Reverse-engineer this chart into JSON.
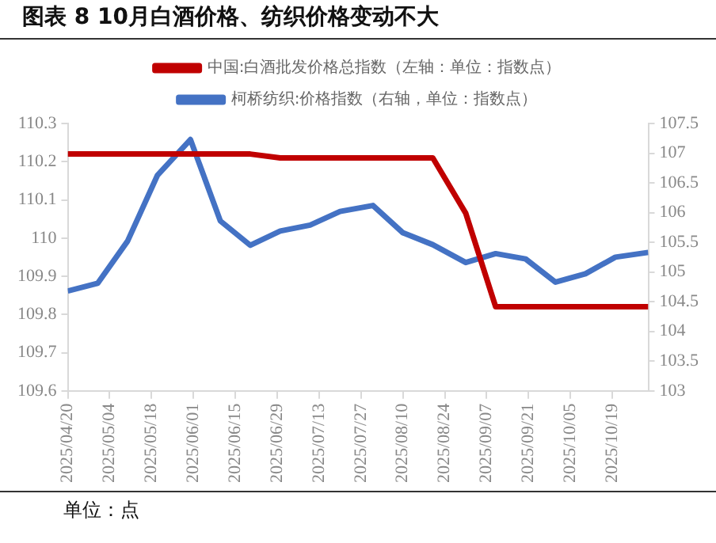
{
  "chart_data": {
    "type": "line",
    "title": "图表 8 10月白酒价格、纺织价格变动不大",
    "x": [
      "2025-04-20",
      "2025-04-30",
      "2025-05-10",
      "2025-05-20",
      "2025-05-31",
      "2025-06-10",
      "2025-06-20",
      "2025-06-30",
      "2025-07-10",
      "2025-07-20",
      "2025-07-31",
      "2025-08-10",
      "2025-08-20",
      "2025-08-31",
      "2025-09-10",
      "2025-09-20",
      "2025-09-30",
      "2025-10-10",
      "2025-10-20",
      "2025-10-31"
    ],
    "series": [
      {
        "name": "中国:白酒批发价格总指数（左轴：单位：指数点）",
        "color": "#c00000",
        "values": [
          110.22,
          110.22,
          110.22,
          110.22,
          110.22,
          110.22,
          110.22,
          110.21,
          110.21,
          110.21,
          110.21,
          110.21,
          110.21,
          110.065,
          109.82,
          109.82,
          109.82,
          109.82,
          109.82,
          109.82
        ]
      },
      {
        "name": "柯桥纺织:价格指数（右轴，单位：指数点）",
        "color": "#4472c4",
        "axis": "y2",
        "values": [
          104.68,
          104.81,
          105.52,
          106.63,
          107.23,
          105.86,
          105.45,
          105.69,
          105.79,
          106.02,
          106.12,
          105.66,
          105.46,
          105.16,
          105.31,
          105.22,
          104.83,
          104.97,
          105.25,
          105.33
        ]
      }
    ],
    "xlim": [
      "2025-04-20",
      "2025-10-31"
    ],
    "xticks": [
      {
        "value": "2025-04-20",
        "label": "2025/04/20"
      },
      {
        "value": "2025-05-04",
        "label": "2025/05/04"
      },
      {
        "value": "2025-05-18",
        "label": "2025/05/18"
      },
      {
        "value": "2025-06-01",
        "label": "2025/06/01"
      },
      {
        "value": "2025-06-15",
        "label": "2025/06/15"
      },
      {
        "value": "2025-06-29",
        "label": "2025/06/29"
      },
      {
        "value": "2025-07-13",
        "label": "2025/07/13"
      },
      {
        "value": "2025-07-27",
        "label": "2025/07/27"
      },
      {
        "value": "2025-08-10",
        "label": "2025/08/10"
      },
      {
        "value": "2025-08-24",
        "label": "2025/08/24"
      },
      {
        "value": "2025-09-07",
        "label": "2025/09/07"
      },
      {
        "value": "2025-09-21",
        "label": "2025/09/21"
      },
      {
        "value": "2025-10-05",
        "label": "2025/10/05"
      },
      {
        "value": "2025-10-19",
        "label": "2025/10/19"
      }
    ],
    "ylim": [
      109.6,
      110.3
    ],
    "yticks": [
      109.6,
      109.7,
      109.8,
      109.9,
      110,
      110.1,
      110.2,
      110.3
    ],
    "y2lim": [
      103,
      107.5
    ],
    "y2ticks": [
      103,
      103.5,
      104,
      104.5,
      105,
      105.5,
      106,
      106.5,
      107,
      107.5
    ],
    "legend": "top",
    "marker": "none",
    "annotations": [
      "单位：点"
    ]
  }
}
